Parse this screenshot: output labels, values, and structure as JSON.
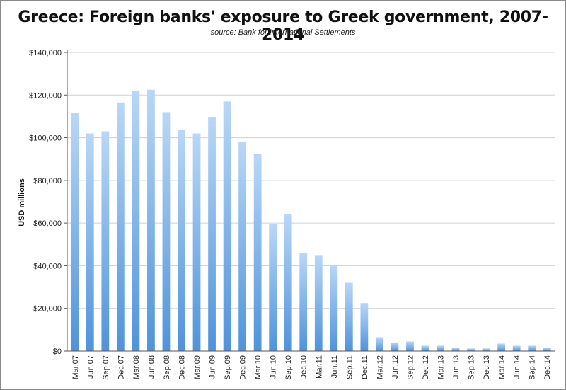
{
  "chart_data": {
    "type": "bar",
    "title": "Greece: Foreign banks' exposure to Greek government, 2007-2014",
    "subtitle": "source: Bank for International Settlements",
    "ylabel": "USD millions",
    "xlabel": "",
    "ylim": [
      0,
      140000
    ],
    "yticks": [
      "$0",
      "$20,000",
      "$40,000",
      "$60,000",
      "$80,000",
      "$100,000",
      "$120,000",
      "$140,000"
    ],
    "grid": true,
    "legend": "none",
    "colors": {
      "bar_top": "#b9d7f7",
      "bar_bottom": "#4f93db",
      "grid": "#d0d0d0",
      "axis": "#555555"
    },
    "categories": [
      "Mar.07",
      "Jun.07",
      "Sep.07",
      "Dec.07",
      "Mar.08",
      "Jun.08",
      "Sep.08",
      "Dec.08",
      "Mar.09",
      "Jun.09",
      "Sep.09",
      "Dec.09",
      "Mar.10",
      "Jun.10",
      "Sep.10",
      "Dec.10",
      "Mar.11",
      "Jun.11",
      "Sep.11",
      "Dec.11",
      "Mar.12",
      "Jun.12",
      "Sep.12",
      "Dec.12",
      "Mar.13",
      "Jun.13",
      "Sep.13",
      "Dec.13",
      "Mar.14",
      "Jun.14",
      "Sep.14",
      "Dec.14"
    ],
    "values": [
      111500,
      102000,
      103000,
      116500,
      122000,
      122500,
      112000,
      103500,
      102000,
      109500,
      117000,
      98000,
      92500,
      59500,
      64000,
      46000,
      45000,
      40500,
      32000,
      22500,
      6500,
      4000,
      4500,
      2500,
      2500,
      1500,
      1200,
      1200,
      3500,
      2500,
      2500,
      1500
    ]
  }
}
